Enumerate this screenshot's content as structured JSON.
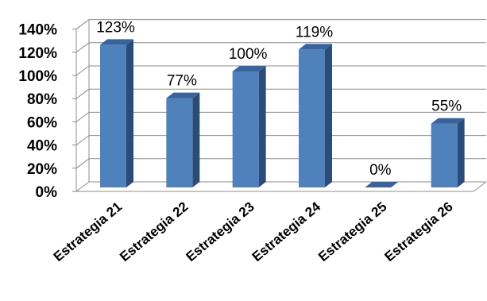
{
  "chart_data": {
    "type": "bar",
    "categories": [
      "Estrategia 21",
      "Estrategia 22",
      "Estrategia 23",
      "Estrategia 24",
      "Estrategia 25",
      "Estrategia 26"
    ],
    "values": [
      123,
      77,
      100,
      119,
      0,
      55
    ],
    "value_labels": [
      "123%",
      "77%",
      "100%",
      "119%",
      "0%",
      "55%"
    ],
    "y_ticks": [
      "0%",
      "20%",
      "40%",
      "60%",
      "80%",
      "100%",
      "120%",
      "140%"
    ],
    "ylim": [
      0,
      140
    ],
    "grid": true,
    "style": "3d-column",
    "colors": {
      "bar_front": "#4f81bd",
      "bar_side": "#2b4c78",
      "bar_top": "#3a6399"
    },
    "title": "",
    "xlabel": "",
    "ylabel": ""
  }
}
